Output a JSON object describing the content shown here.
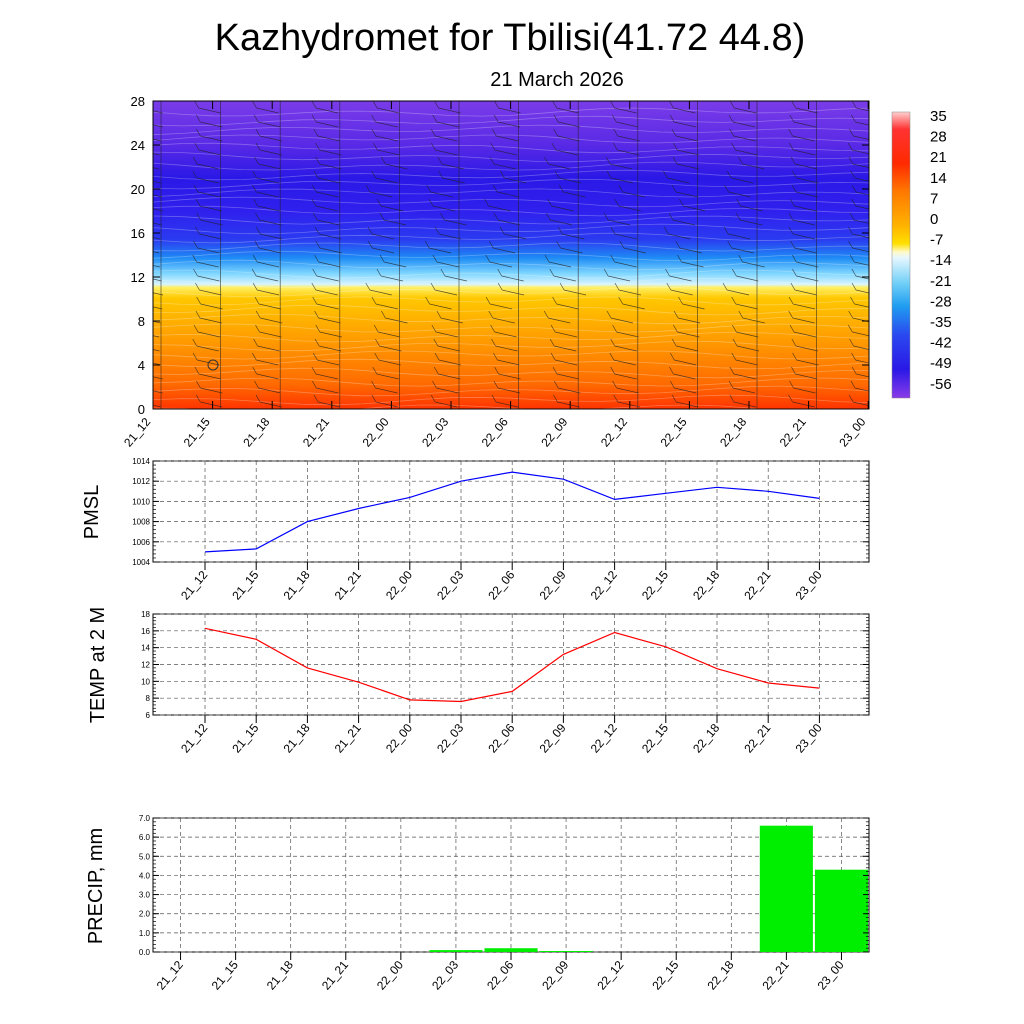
{
  "header": {
    "title": "Kazhydromet for Tbilisi(41.72 44.8)",
    "date": "21 March 2026"
  },
  "time_labels": [
    "21_12",
    "21_15",
    "21_18",
    "21_21",
    "22_00",
    "22_03",
    "22_06",
    "22_09",
    "22_12",
    "22_15",
    "22_18",
    "22_21",
    "23_00"
  ],
  "chart_data": [
    {
      "id": "temperature-cross-section",
      "type": "heatmap",
      "y_ticks": [
        0,
        4,
        8,
        12,
        16,
        20,
        24,
        28
      ],
      "ylim": [
        0,
        28
      ],
      "colorbar": {
        "labels": [
          "35",
          "28",
          "21",
          "14",
          "7",
          "0",
          "-7",
          "-14",
          "-21",
          "-28",
          "-35",
          "-42",
          "-49",
          "-56"
        ],
        "range": [
          -63,
          42
        ]
      },
      "wind_barbs": true,
      "marker_circle": {
        "time_index": 1,
        "level": 4
      }
    },
    {
      "id": "pmsl",
      "type": "line",
      "ylabel": "PMSL",
      "ylim": [
        1004,
        1014
      ],
      "y_ticks": [
        1004,
        1006,
        1008,
        1010,
        1012,
        1014
      ],
      "color": "#0000ff",
      "values": [
        1005.0,
        1005.3,
        1008.0,
        1009.3,
        1010.4,
        1012.0,
        1012.9,
        1012.2,
        1010.2,
        1010.8,
        1011.4,
        1011.0,
        1010.3
      ]
    },
    {
      "id": "temp2m",
      "type": "line",
      "ylabel": "TEMP at 2 M",
      "ylim": [
        6,
        18
      ],
      "y_ticks": [
        6,
        8,
        10,
        12,
        14,
        16,
        18
      ],
      "color": "#ff0000",
      "values": [
        16.3,
        15.0,
        11.6,
        9.9,
        7.8,
        7.6,
        8.8,
        13.2,
        15.8,
        14.1,
        11.5,
        9.8,
        9.2
      ]
    },
    {
      "id": "precip",
      "type": "bar",
      "ylabel": "PRECIP, mm",
      "ylim": [
        0,
        7
      ],
      "y_ticks": [
        "0.0",
        "1.0",
        "2.0",
        "3.0",
        "4.0",
        "5.0",
        "6.0",
        "7.0"
      ],
      "color": "#00ee00",
      "values": [
        0,
        0,
        0,
        0,
        0,
        0.1,
        0.2,
        0.05,
        0,
        0,
        0,
        6.6,
        4.3
      ]
    }
  ]
}
